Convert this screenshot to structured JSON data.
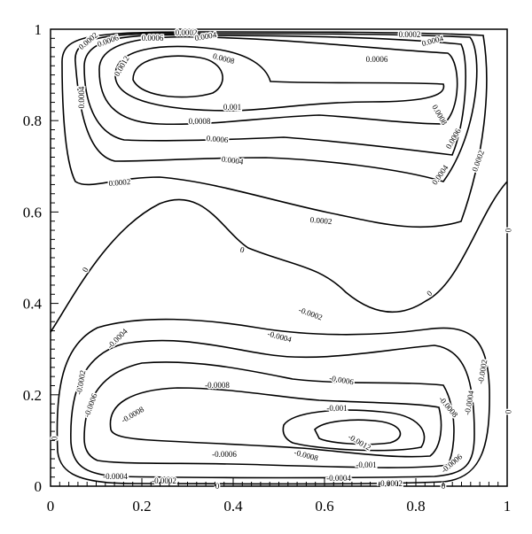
{
  "chart_data": {
    "type": "contour",
    "xlim": [
      0,
      1
    ],
    "ylim": [
      0,
      1
    ],
    "xticks": [
      0,
      0.2,
      0.4,
      0.6,
      0.8,
      1
    ],
    "yticks": [
      0,
      0.2,
      0.4,
      0.6,
      0.8,
      1
    ],
    "levels": [
      -0.0012,
      -0.001,
      -0.0008,
      -0.0006,
      -0.0004,
      -0.0002,
      0,
      0.0002,
      0.0004,
      0.0006,
      0.0008,
      0.001,
      0.0012
    ],
    "color": "#000000"
  }
}
